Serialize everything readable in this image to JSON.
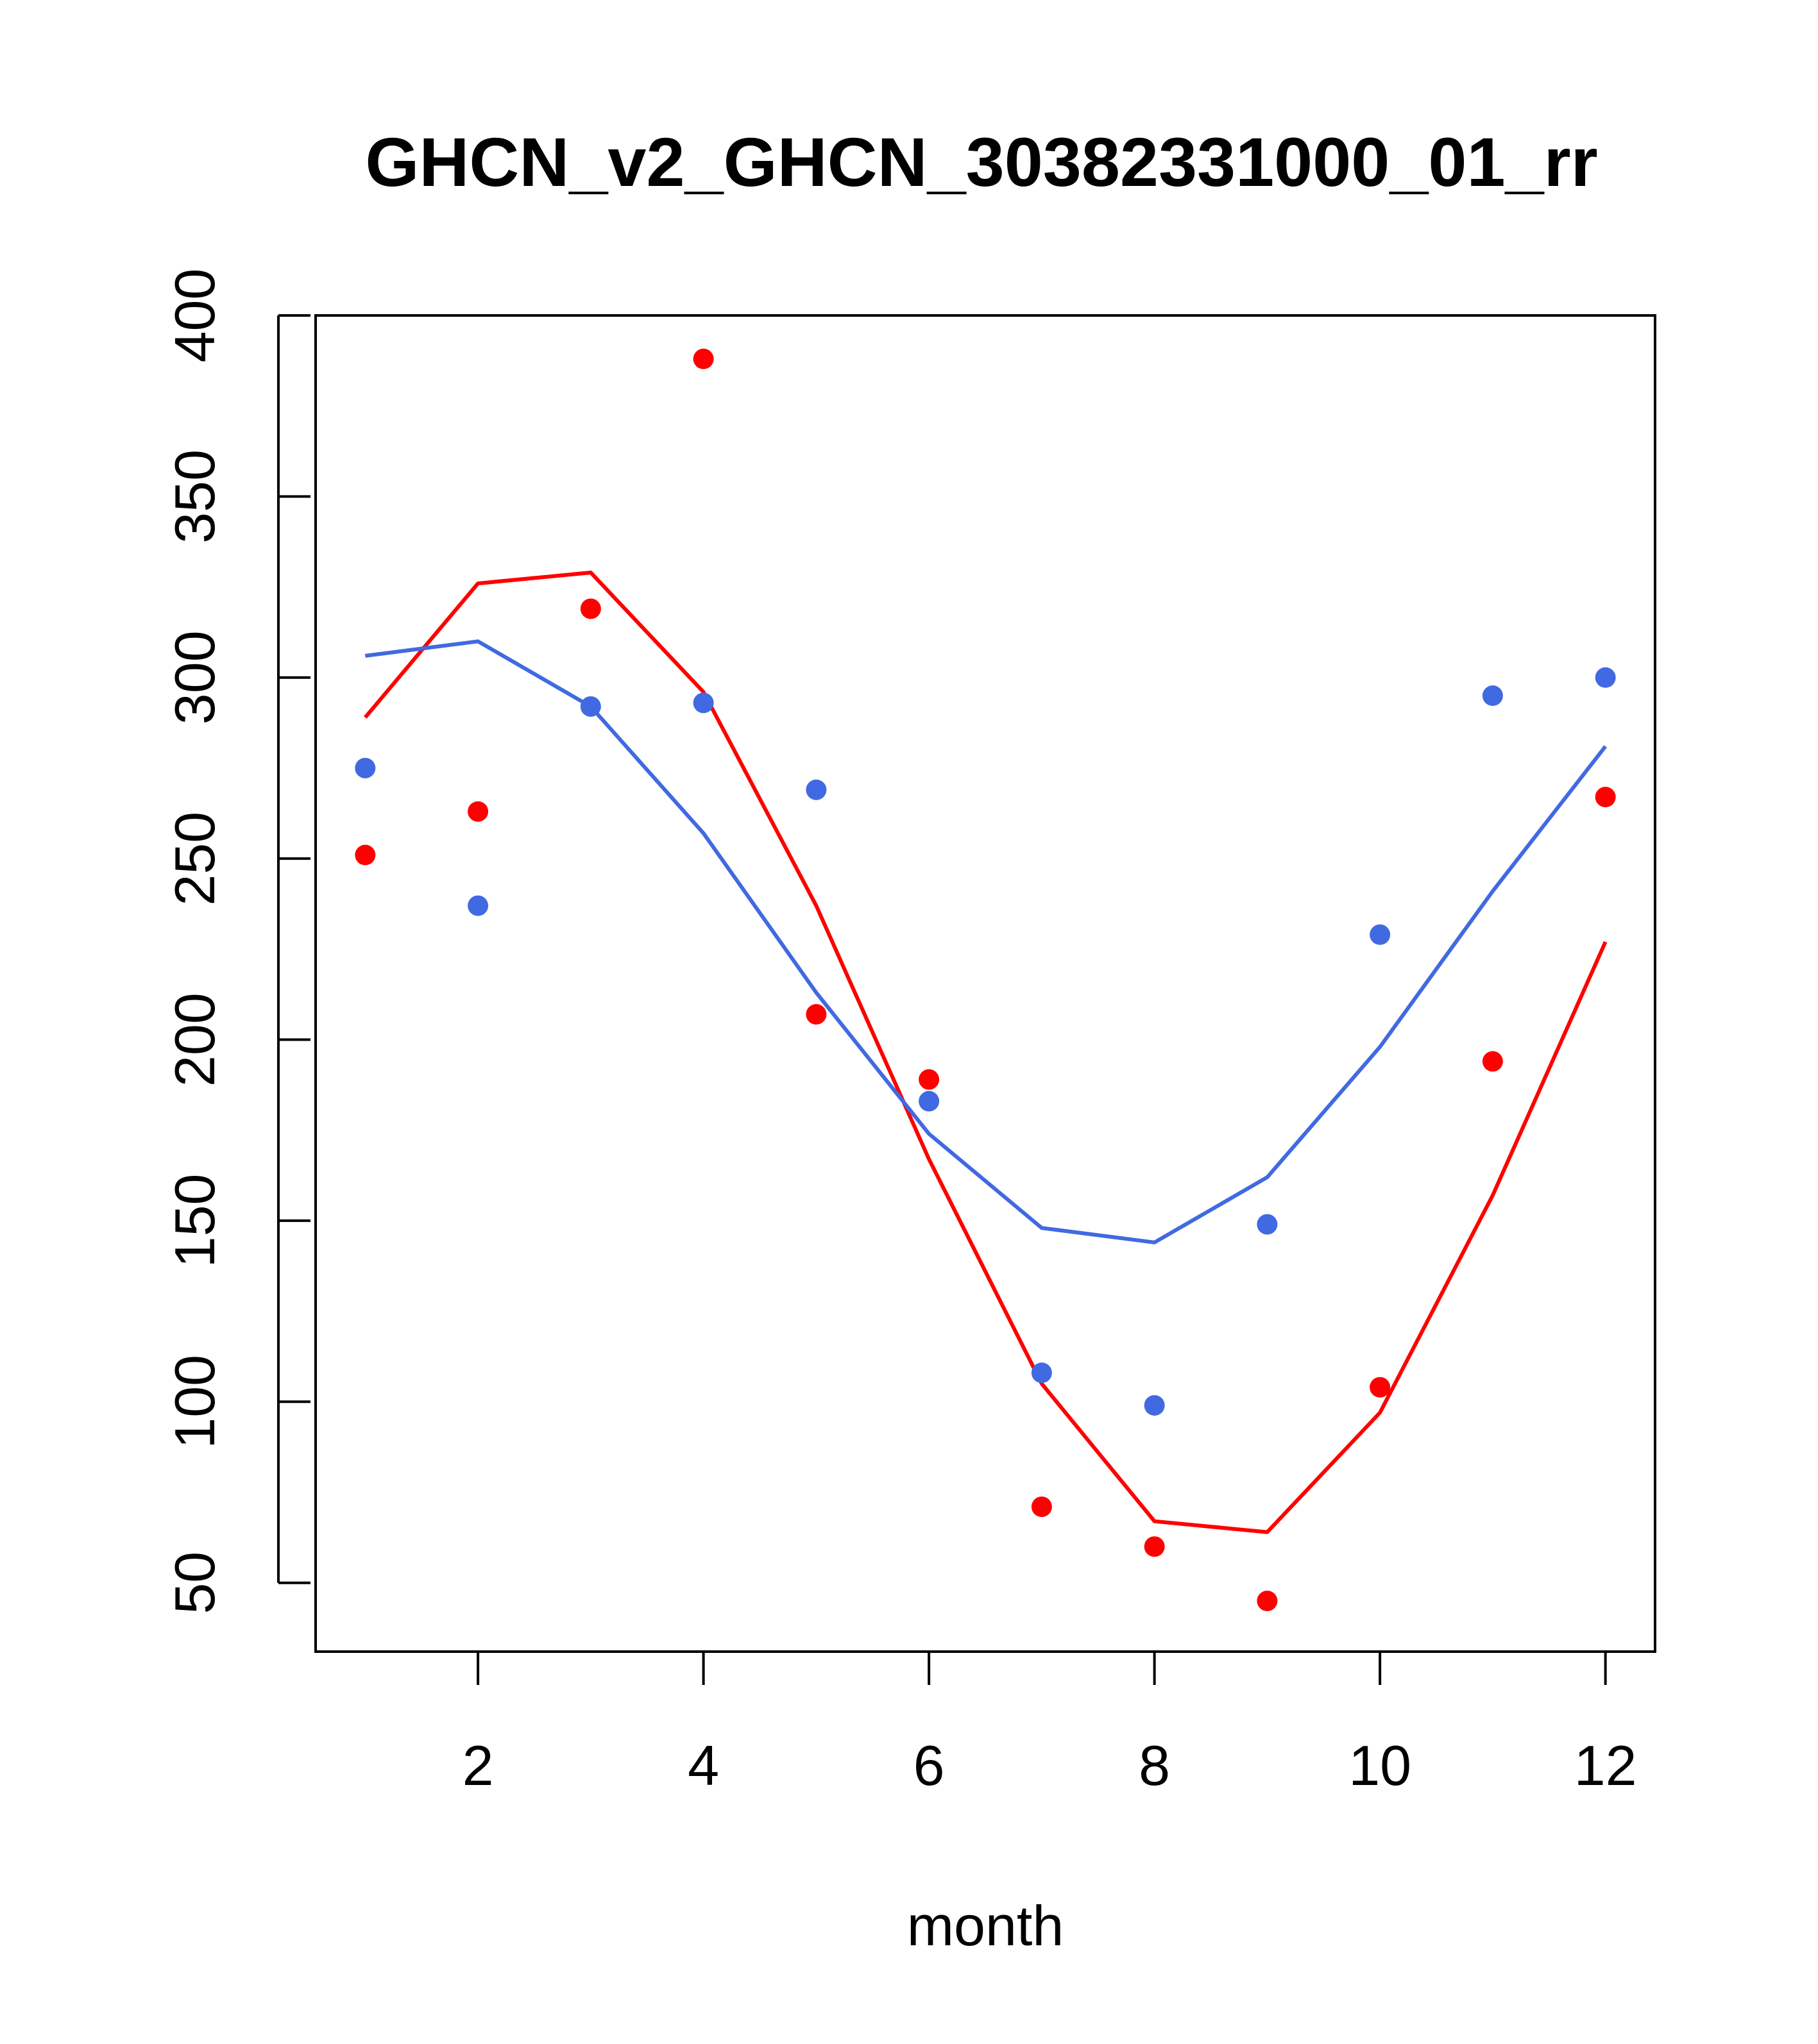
{
  "chart_data": {
    "type": "scatter",
    "title": "GHCN_v2_GHCN_30382331000_01_rr",
    "xlabel": "month",
    "ylabel": "",
    "xlim": [
      0.56,
      12.44
    ],
    "ylim": [
      31,
      400
    ],
    "xticks": [
      2,
      4,
      6,
      8,
      10,
      12
    ],
    "yticks": [
      50,
      100,
      150,
      200,
      250,
      300,
      350,
      400
    ],
    "grid": false,
    "legend": "none",
    "series": [
      {
        "name": "points-red",
        "kind": "points",
        "color": "#ff0000",
        "x": [
          1,
          2,
          3,
          4,
          5,
          6,
          7,
          8,
          9,
          10,
          11,
          12
        ],
        "values": [
          251,
          263,
          319,
          388,
          207,
          189,
          71,
          60,
          45,
          104,
          194,
          267
        ]
      },
      {
        "name": "points-blue",
        "kind": "points",
        "color": "#4169e1",
        "x": [
          1,
          2,
          3,
          4,
          5,
          6,
          7,
          8,
          9,
          10,
          11,
          12
        ],
        "values": [
          275,
          237,
          292,
          293,
          269,
          183,
          108,
          99,
          149,
          229,
          295,
          300
        ]
      },
      {
        "name": "line-red",
        "kind": "line",
        "color": "#ff0000",
        "x": [
          1,
          2,
          3,
          4,
          5,
          6,
          7,
          8,
          9,
          10,
          11,
          12
        ],
        "values": [
          289,
          326,
          329,
          296,
          237,
          167,
          105,
          67,
          64,
          97,
          157,
          227
        ]
      },
      {
        "name": "line-blue",
        "kind": "line",
        "color": "#4169e1",
        "x": [
          1,
          2,
          3,
          4,
          5,
          6,
          7,
          8,
          9,
          10,
          11,
          12
        ],
        "values": [
          306,
          310,
          292,
          257,
          213,
          174,
          148,
          144,
          162,
          198,
          241,
          281
        ]
      }
    ]
  }
}
